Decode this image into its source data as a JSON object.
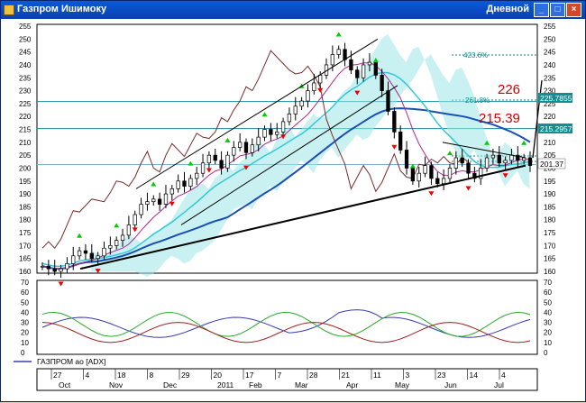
{
  "window": {
    "title": "Газпром Ишимоку",
    "period": "Дневной",
    "buttons": {
      "minimize": "_",
      "maximize": "□",
      "close": "×"
    }
  },
  "price_axis": {
    "ticks": [
      "255",
      "250",
      "245",
      "240",
      "235",
      "230",
      "225",
      "220",
      "215",
      "210",
      "205",
      "200",
      "195",
      "190",
      "185",
      "180",
      "175",
      "170",
      "165",
      "160"
    ],
    "marker_labels": [
      "225.7855",
      "215.2957",
      "201.37"
    ]
  },
  "fib_labels": [
    "423.6%",
    "261.8%"
  ],
  "annotations": [
    "226",
    "215.39"
  ],
  "indicator": {
    "title": "ГАЗПРОМ ао [ADX]",
    "ticks": [
      "70",
      "60",
      "50",
      "40",
      "30",
      "20",
      "10",
      "0"
    ]
  },
  "date_axis": {
    "days": [
      "27",
      "4",
      "18",
      "8",
      "29",
      "20",
      "17",
      "7",
      "28",
      "21",
      "11",
      "3",
      "23",
      "14",
      "4"
    ],
    "months": [
      "Oct",
      "Nov",
      "Dec",
      "2011",
      "Feb",
      "Mar",
      "Apr",
      "May",
      "Jun",
      "Jul"
    ]
  },
  "colors": {
    "ichimoku_cloud": "#9ee6e6",
    "support_line": "#000000",
    "buy_arrow": "#00cc00",
    "sell_arrow": "#ee0000",
    "annotation": "#cc0000"
  },
  "chart_data": {
    "type": "line",
    "price_ylim": [
      160,
      255
    ],
    "adx_ylim": [
      0,
      70
    ],
    "horizontal_levels": [
      225.7855,
      215.2957,
      201.37
    ],
    "annotations": [
      226,
      215.39
    ],
    "price_close": [
      162,
      161,
      160,
      161,
      163,
      166,
      168,
      167,
      165,
      166,
      169,
      170,
      172,
      174,
      178,
      182,
      186,
      187,
      188,
      186,
      190,
      192,
      195,
      193,
      196,
      198,
      202,
      205,
      203,
      200,
      205,
      208,
      210,
      206,
      209,
      212,
      215,
      213,
      214,
      218,
      221,
      224,
      226,
      230,
      233,
      236,
      240,
      244,
      246,
      242,
      238,
      235,
      240,
      241,
      236,
      230,
      222,
      214,
      207,
      200,
      195,
      198,
      201,
      196,
      194,
      196,
      200,
      204,
      202,
      198,
      196,
      200,
      204,
      205,
      202,
      203,
      205,
      203,
      204,
      201
    ]
  }
}
